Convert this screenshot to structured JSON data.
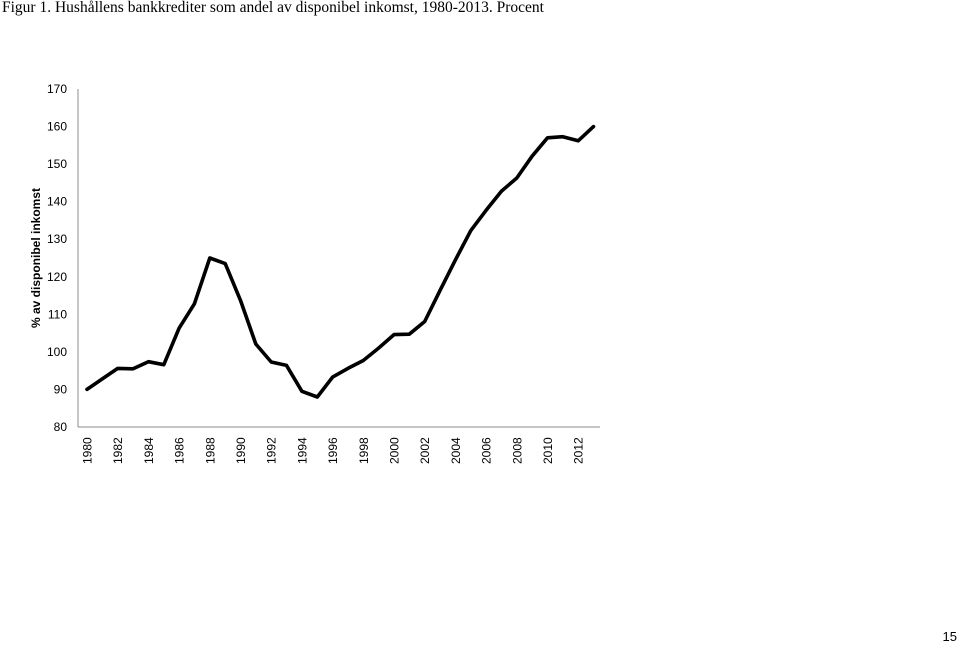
{
  "figure": {
    "title": "Figur 1. Hushållens bankkrediter som andel av disponibel inkomst, 1980-2013. Procent"
  },
  "page": {
    "number": "15"
  },
  "chart_data": {
    "type": "line",
    "title": "Figur 1. Hushållens bankkrediter som andel av disponibel inkomst, 1980-2013. Procent",
    "xlabel": "",
    "ylabel": "% av disponibel inkomst",
    "ylim": [
      80,
      170
    ],
    "yticks": [
      80,
      90,
      100,
      110,
      120,
      130,
      140,
      150,
      160,
      170
    ],
    "xticks": [
      "1980",
      "1982",
      "1984",
      "1986",
      "1988",
      "1990",
      "1992",
      "1994",
      "1996",
      "1998",
      "2000",
      "2002",
      "2004",
      "2006",
      "2008",
      "2010",
      "2012"
    ],
    "grid": false,
    "legend": "none",
    "line_color": "#000000",
    "x": [
      1980,
      1981,
      1982,
      1983,
      1984,
      1985,
      1986,
      1987,
      1988,
      1989,
      1990,
      1991,
      1992,
      1993,
      1994,
      1995,
      1996,
      1997,
      1998,
      1999,
      2000,
      2001,
      2002,
      2003,
      2004,
      2005,
      2006,
      2007,
      2008,
      2009,
      2010,
      2011,
      2012,
      2013
    ],
    "series": [
      {
        "values": [
          90,
          92.8,
          95.6,
          95.5,
          97.4,
          96.6,
          106.3,
          112.8,
          125,
          123.5,
          113.7,
          102.1,
          97.3,
          96.4,
          89.5,
          88,
          93.3,
          95.6,
          97.7,
          101,
          104.6,
          104.7,
          108.1,
          116.4,
          124.5,
          132.3,
          137.7,
          142.8,
          146.3,
          152.1,
          157,
          157.3,
          156.2,
          160
        ]
      }
    ]
  }
}
